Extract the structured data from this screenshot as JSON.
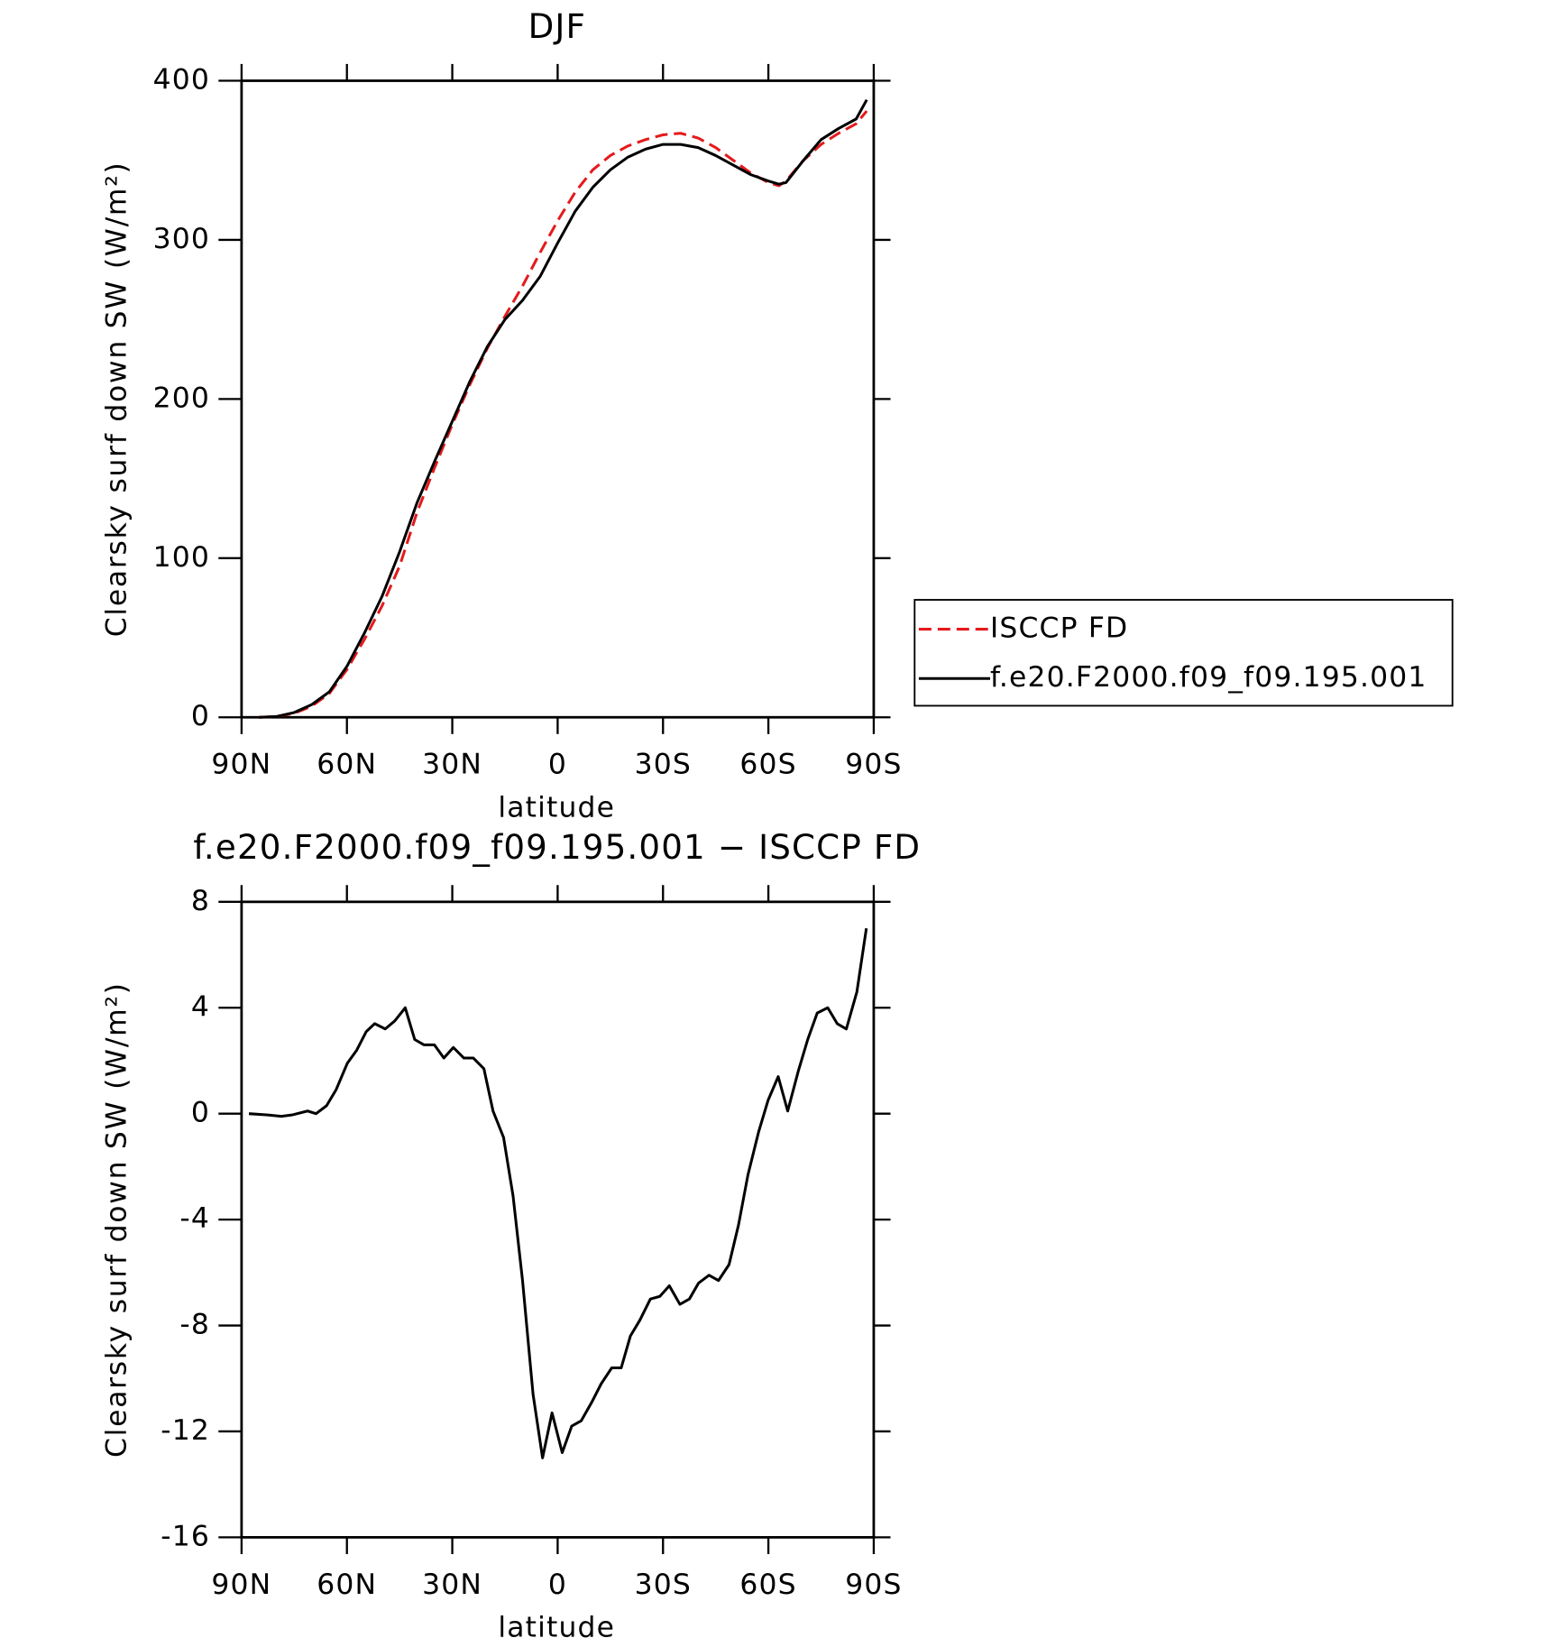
{
  "chart_data": [
    {
      "type": "line",
      "title": "DJF",
      "xlabel": "latitude",
      "ylabel": "Clearsky surf down SW (W/m²)",
      "x": [
        85,
        80,
        75,
        70,
        65,
        60,
        55,
        50,
        45,
        40,
        35,
        30,
        25,
        20,
        15,
        10,
        5,
        0,
        -5,
        -10,
        -15,
        -20,
        -25,
        -30,
        -35,
        -40,
        -45,
        -50,
        -55,
        -60,
        -63,
        -65,
        -70,
        -75,
        -80,
        -85,
        -88
      ],
      "series": [
        {
          "name": "ISCCP FD",
          "color": "#e41a1c",
          "linestyle": "dashed",
          "values": [
            0,
            0.5,
            2.5,
            7,
            15,
            30,
            49,
            70,
            95,
            129,
            157,
            184,
            209,
            232,
            252,
            271,
            292,
            312,
            330,
            344,
            353,
            359,
            363,
            366,
            367,
            364,
            358,
            350,
            342,
            336,
            334,
            337,
            350,
            360,
            367,
            373,
            381
          ]
        },
        {
          "name": "f.e20.F2000.f09_f09.195.001",
          "color": "#000000",
          "linestyle": "solid",
          "values": [
            0,
            0.5,
            3,
            8,
            16,
            32,
            53,
            76,
            104,
            135,
            161,
            186,
            211,
            233,
            250,
            262,
            277,
            298,
            318,
            333,
            344,
            352,
            357,
            360,
            360,
            358,
            353,
            347,
            341,
            337,
            335,
            336,
            350,
            363,
            370,
            376,
            388
          ]
        }
      ],
      "xlim": [
        90,
        -90
      ],
      "xticks": [
        {
          "value": 90,
          "label": "90N"
        },
        {
          "value": 60,
          "label": "60N"
        },
        {
          "value": 30,
          "label": "30N"
        },
        0,
        {
          "value": -30,
          "label": "30S"
        },
        {
          "value": -60,
          "label": "60S"
        },
        {
          "value": -90,
          "label": "90S"
        }
      ],
      "ylim": [
        0,
        400
      ],
      "yticks": [
        0,
        100,
        200,
        300,
        400
      ],
      "legend": "right"
    },
    {
      "type": "line",
      "title": "f.e20.F2000.f09_f09.195.001 − ISCCP FD",
      "xlabel": "latitude",
      "ylabel": "Clearsky surf down SW (W/m²)",
      "x": [
        87.9,
        82.5,
        78.7,
        75.7,
        71.2,
        68.8,
        65.8,
        63.1,
        59.9,
        57.2,
        54.5,
        52.1,
        49.1,
        46.4,
        43.4,
        40.7,
        38.1,
        35.1,
        32.4,
        29.7,
        26.7,
        24.0,
        21.0,
        18.4,
        15.4,
        12.7,
        10.0,
        7.0,
        4.3,
        1.6,
        -1.3,
        -4.0,
        -6.7,
        -9.7,
        -12.4,
        -15.4,
        -18.1,
        -20.7,
        -23.4,
        -26.4,
        -29.1,
        -31.8,
        -34.8,
        -37.5,
        -40.1,
        -43.1,
        -45.8,
        -48.8,
        -51.5,
        -54.2,
        -57.2,
        -59.9,
        -62.8,
        -65.5,
        -68.5,
        -71.2,
        -73.9,
        -76.9,
        -79.6,
        -82.2,
        -85.2,
        -87.9
      ],
      "values": [
        0,
        -0.05,
        -0.1,
        -0.05,
        0.1,
        0,
        0.3,
        0.9,
        1.9,
        2.4,
        3.1,
        3.4,
        3.2,
        3.5,
        4.0,
        2.8,
        2.6,
        2.6,
        2.1,
        2.5,
        2.1,
        2.1,
        1.7,
        0.1,
        -0.9,
        -3.1,
        -6.3,
        -10.6,
        -13.0,
        -11.3,
        -12.8,
        -11.8,
        -11.6,
        -10.9,
        -10.2,
        -9.6,
        -9.6,
        -8.4,
        -7.8,
        -7.0,
        -6.9,
        -6.5,
        -7.2,
        -7.0,
        -6.4,
        -6.1,
        -6.3,
        -5.7,
        -4.2,
        -2.3,
        -0.7,
        0.5,
        1.4,
        0.1,
        1.6,
        2.8,
        3.8,
        4.0,
        3.4,
        3.2,
        4.6,
        7.0
      ],
      "color": "#000000",
      "xlim": [
        90,
        -90
      ],
      "xticks": [
        {
          "value": 90,
          "label": "90N"
        },
        {
          "value": 60,
          "label": "60N"
        },
        {
          "value": 30,
          "label": "30N"
        },
        0,
        {
          "value": -30,
          "label": "30S"
        },
        {
          "value": -60,
          "label": "60S"
        },
        {
          "value": -90,
          "label": "90S"
        }
      ],
      "ylim": [
        -16,
        8
      ],
      "yticks": [
        -16,
        -12,
        -8,
        -4,
        0,
        4,
        8
      ]
    }
  ]
}
